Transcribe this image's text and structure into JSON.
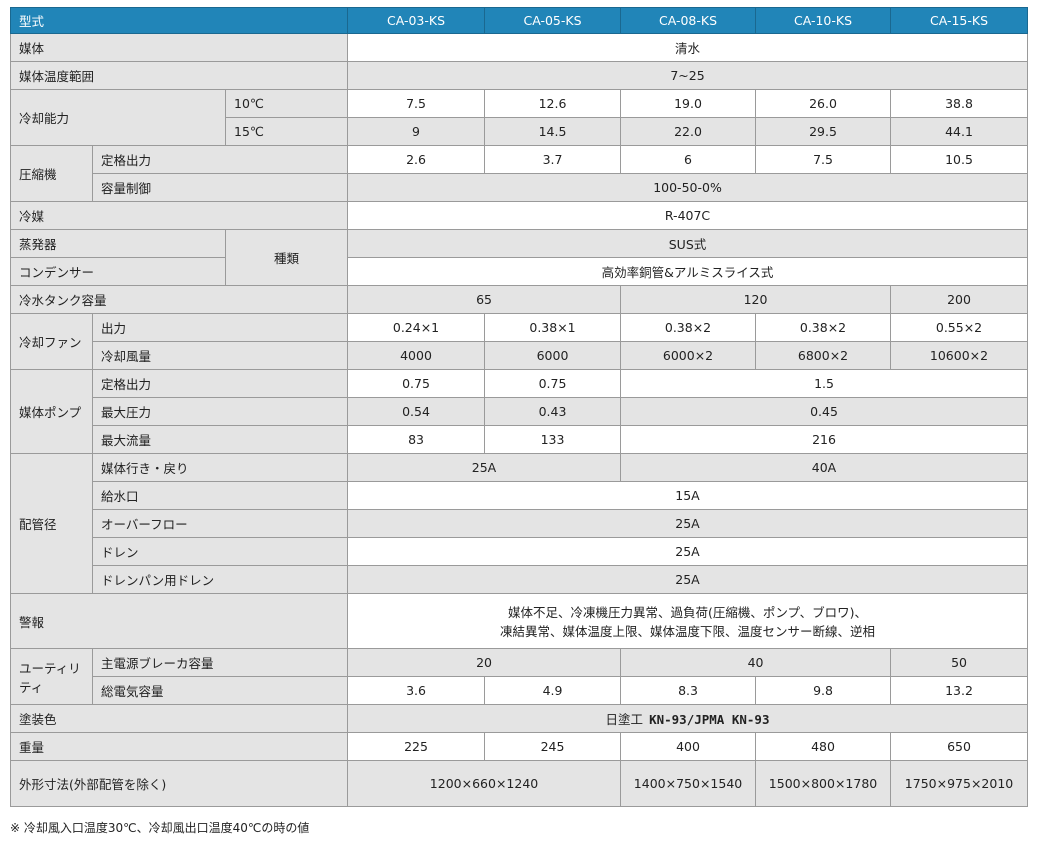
{
  "header": {
    "label": "型式",
    "models": [
      "CA-03-KS",
      "CA-05-KS",
      "CA-08-KS",
      "CA-10-KS",
      "CA-15-KS"
    ]
  },
  "colors": {
    "header_bg": "#2185b8",
    "label_bg": "#e4e4e4"
  },
  "groups": {
    "cooling": "冷却能力",
    "compressor": "圧縮機",
    "kind": "種類",
    "fan": "冷却ファン",
    "pump": "媒体ポンプ",
    "piping": "配管径",
    "utility": "ユーティリティ"
  },
  "rows": [
    {
      "label": "媒体",
      "values": [
        "清水"
      ]
    },
    {
      "label": "媒体温度範囲",
      "values": [
        "7~25"
      ]
    },
    {
      "label": "10℃",
      "values": [
        "7.5",
        "12.6",
        "19.0",
        "26.0",
        "38.8"
      ]
    },
    {
      "label": "15℃",
      "values": [
        "9",
        "14.5",
        "22.0",
        "29.5",
        "44.1"
      ]
    },
    {
      "label": "定格出力",
      "values": [
        "2.6",
        "3.7",
        "6",
        "7.5",
        "10.5"
      ]
    },
    {
      "label": "容量制御",
      "values": [
        "100-50-0%"
      ]
    },
    {
      "label": "冷媒",
      "values": [
        "R-407C"
      ]
    },
    {
      "label": "蒸発器",
      "values": [
        "SUS式"
      ]
    },
    {
      "label": "コンデンサー",
      "values": [
        "高効率銅管&アルミスライス式"
      ]
    },
    {
      "label": "冷水タンク容量",
      "values": [
        "65",
        "120",
        "200"
      ]
    },
    {
      "label": "出力",
      "values": [
        "0.24×1",
        "0.38×1",
        "0.38×2",
        "0.38×2",
        "0.55×2"
      ]
    },
    {
      "label": "冷却風量",
      "values": [
        "4000",
        "6000",
        "6000×2",
        "6800×2",
        "10600×2"
      ]
    },
    {
      "label": "定格出力",
      "values": [
        "0.75",
        "0.75",
        "1.5"
      ]
    },
    {
      "label": "最大圧力",
      "values": [
        "0.54",
        "0.43",
        "0.45"
      ]
    },
    {
      "label": "最大流量",
      "values": [
        "83",
        "133",
        "216"
      ]
    },
    {
      "label": "媒体行き・戻り",
      "values": [
        "25A",
        "40A"
      ]
    },
    {
      "label": "給水口",
      "values": [
        "15A"
      ]
    },
    {
      "label": "オーバーフロー",
      "values": [
        "25A"
      ]
    },
    {
      "label": "ドレン",
      "values": [
        "25A"
      ]
    },
    {
      "label": "ドレンパン用ドレン",
      "values": [
        "25A"
      ]
    },
    {
      "label": "警報",
      "values": [
        "媒体不足、冷凍機圧力異常、過負荷(圧縮機、ポンプ、ブロワ)、",
        "凍結異常、媒体温度上限、媒体温度下限、温度センサー断線、逆相"
      ]
    },
    {
      "label": "主電源ブレーカ容量",
      "values": [
        "20",
        "40",
        "50"
      ]
    },
    {
      "label": "総電気容量",
      "values": [
        "3.6",
        "4.9",
        "8.3",
        "9.8",
        "13.2"
      ]
    },
    {
      "label": "塗装色",
      "values": [
        "日塗工",
        "KN-93/JPMA KN-93"
      ]
    },
    {
      "label": "重量",
      "values": [
        "225",
        "245",
        "400",
        "480",
        "650"
      ]
    },
    {
      "label": "外形寸法(外部配管を除く)",
      "values": [
        "1200×660×1240",
        "1400×750×1540",
        "1500×800×1780",
        "1750×975×2010"
      ]
    }
  ],
  "footnote": "※ 冷却風入口温度30℃、冷却風出口温度40℃の時の値"
}
